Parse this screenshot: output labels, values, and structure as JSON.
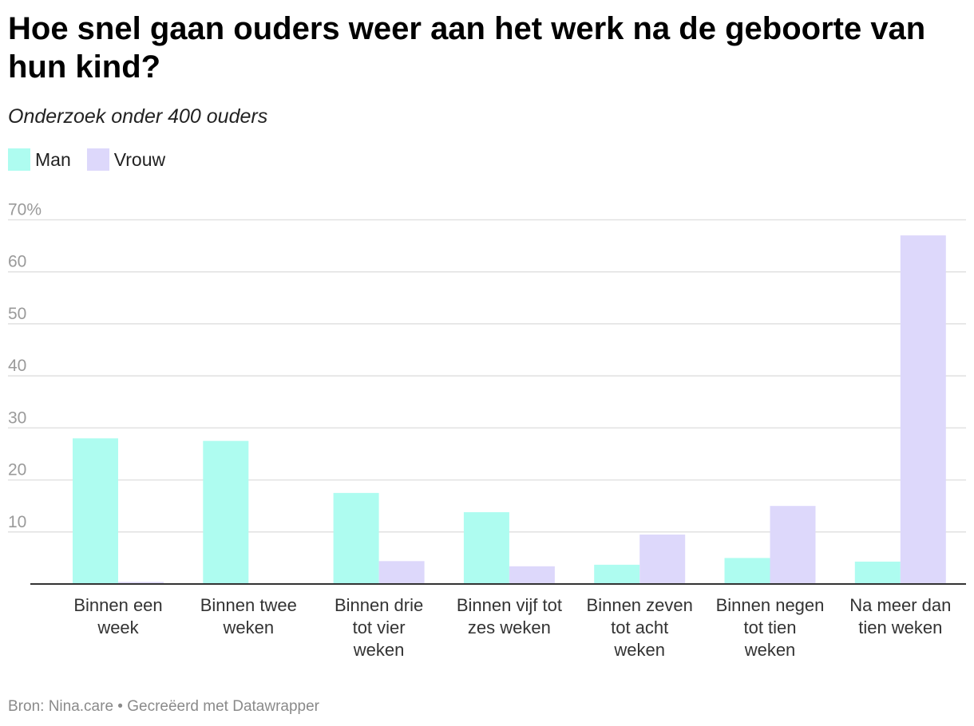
{
  "title": "Hoe snel gaan ouders weer aan het werk na de geboorte van hun kind?",
  "subtitle": "Onderzoek onder 400 ouders",
  "footer": {
    "source": "Bron: Nina.care",
    "separator": "•",
    "credit": "Gecreëerd met Datawrapper"
  },
  "colors": {
    "man": "#aefcf0",
    "vrouw": "#ddd8fb",
    "grid": "#e1e1e1",
    "axis": "#333333",
    "tick_text": "#9a9a9a"
  },
  "chart_data": {
    "type": "bar",
    "categories": [
      [
        "Binnen een",
        "week"
      ],
      [
        "Binnen twee",
        "weken"
      ],
      [
        "Binnen drie",
        "tot vier",
        "weken"
      ],
      [
        "Binnen vijf tot",
        "zes weken"
      ],
      [
        "Binnen zeven",
        "tot acht",
        "weken"
      ],
      [
        "Binnen negen",
        "tot tien",
        "weken"
      ],
      [
        "Na meer dan",
        "tien weken"
      ]
    ],
    "series": [
      {
        "name": "Man",
        "color": "#aefcf0",
        "values": [
          28,
          27.5,
          17.5,
          13.8,
          3.7,
          5,
          4.3
        ]
      },
      {
        "name": "Vrouw",
        "color": "#ddd8fb",
        "values": [
          0.4,
          0,
          4.4,
          3.4,
          9.5,
          15,
          67
        ]
      }
    ],
    "yticks": [
      {
        "value": 10,
        "label": "10"
      },
      {
        "value": 20,
        "label": "20"
      },
      {
        "value": 30,
        "label": "30"
      },
      {
        "value": 40,
        "label": "40"
      },
      {
        "value": 50,
        "label": "50"
      },
      {
        "value": 60,
        "label": "60"
      },
      {
        "value": 70,
        "label": "70%"
      }
    ],
    "ylim": [
      0,
      70
    ],
    "grid": true,
    "legend_position": "top-left"
  }
}
